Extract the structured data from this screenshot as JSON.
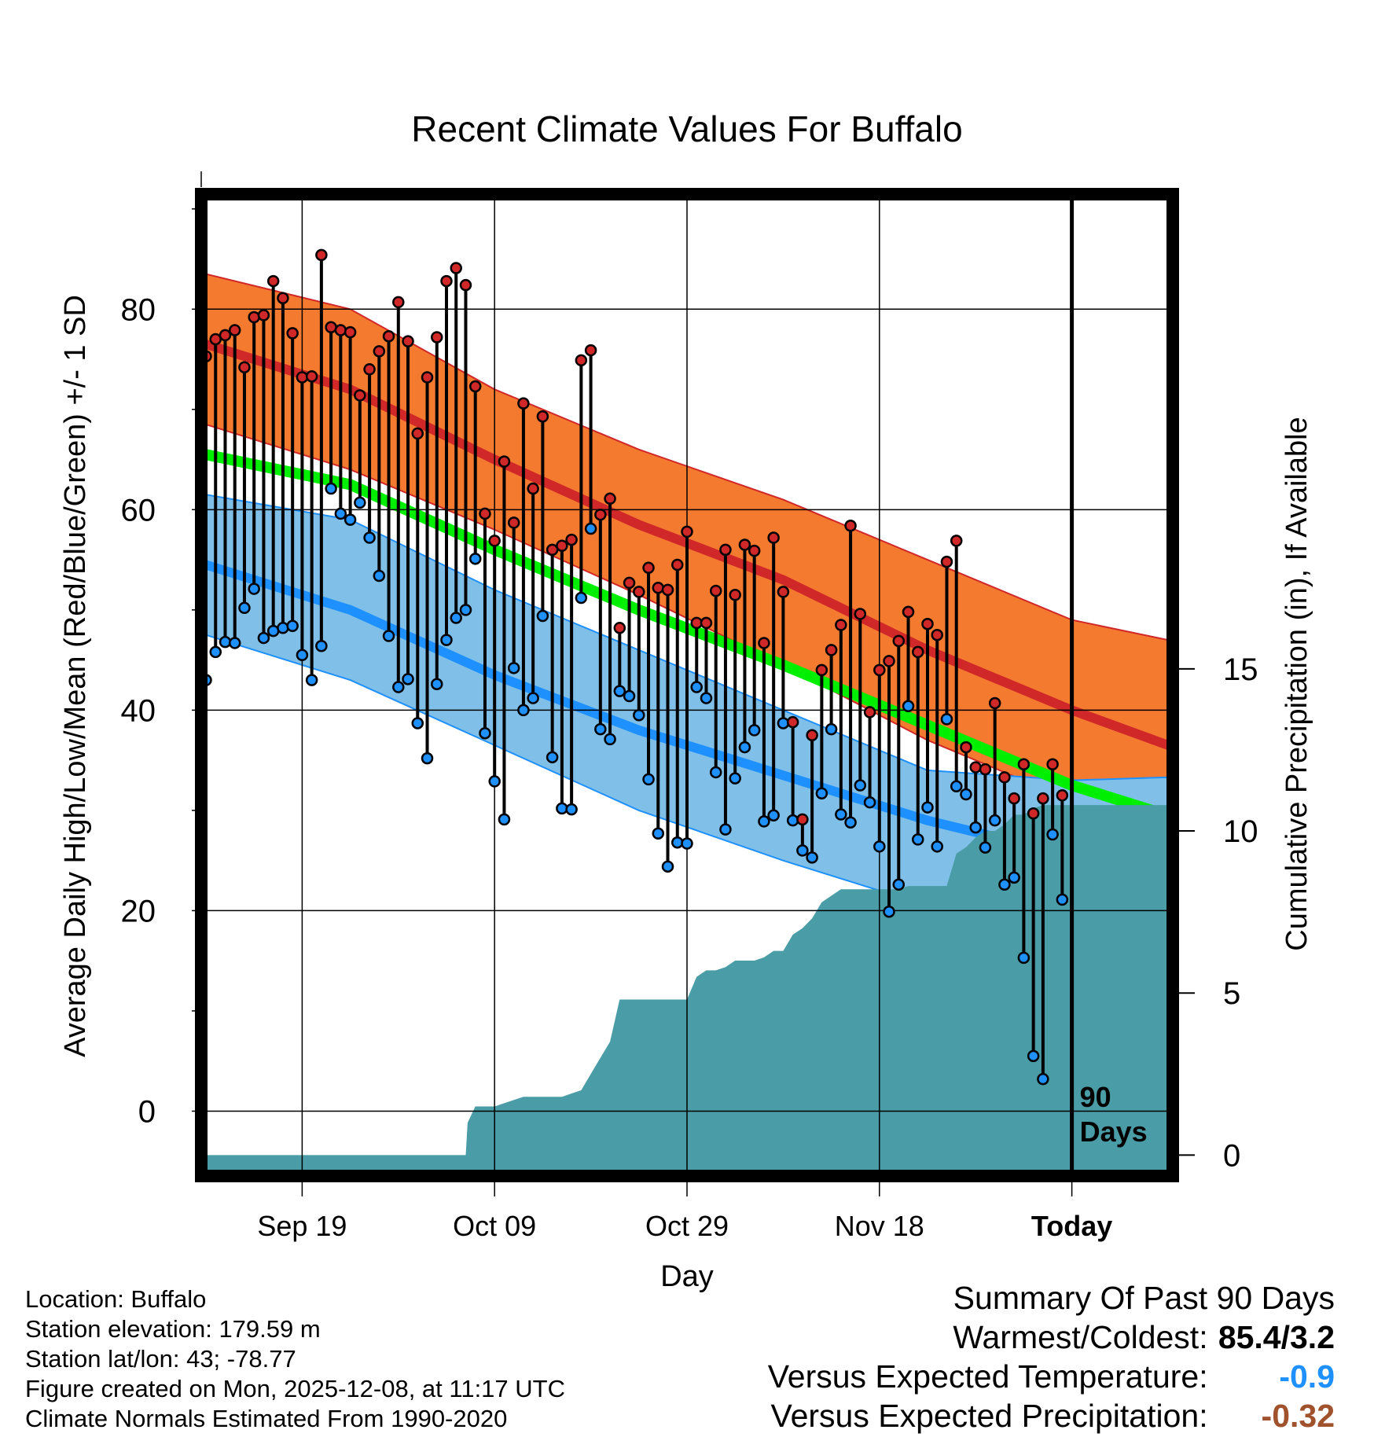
{
  "colors": {
    "record_band": "#F47A30",
    "normal_high": "#D02828",
    "normal_low": "#1E90FF",
    "low_band": "#80C0E8",
    "mean_line": "#00EE00",
    "mean_band": "#990F14",
    "precip_fill": "#4A9CA6",
    "high_dot": "#D02828",
    "low_dot": "#1E90FF",
    "cold_value": "#1E90FF",
    "dry_value": "#A0522D"
  },
  "chart_data": {
    "type": "line",
    "title": "Recent Climate Values For Buffalo",
    "xlabel": "Day",
    "ylabel": "Average Daily High/Low/Mean (Red/Blue/Green) +/- 1 SD",
    "y2label": "Cumulative Precipitation (in), If Available",
    "x_range": [
      0,
      100
    ],
    "ylim": [
      -6,
      91
    ],
    "y2lim": [
      -0.5,
      29.5
    ],
    "y_ticks": [
      0,
      20,
      40,
      60,
      80
    ],
    "y2_ticks": [
      0,
      5,
      10,
      15
    ],
    "x_tick_labels": [
      {
        "day": 10,
        "label": "Sep 19"
      },
      {
        "day": 30,
        "label": "Oct 09"
      },
      {
        "day": 50,
        "label": "Oct 29"
      },
      {
        "day": 70,
        "label": "Nov 18"
      },
      {
        "day": 90,
        "label": "Today"
      }
    ],
    "today_label": [
      "90",
      "Days"
    ],
    "today_day": 90,
    "normals": {
      "days": [
        0,
        15,
        30,
        45,
        60,
        75,
        90,
        100
      ],
      "high_plus_sd": [
        83.5,
        80,
        72,
        66,
        61,
        55,
        49,
        47
      ],
      "high_mean": [
        76.5,
        72,
        65,
        58.5,
        53,
        46,
        40,
        36.5
      ],
      "high_minus_sd": [
        68.5,
        64,
        58,
        51.5,
        44.5,
        37,
        31,
        27
      ],
      "mean": [
        65.5,
        62.5,
        56,
        50,
        44.5,
        38.5,
        32.5,
        29.5
      ],
      "low_plus_sd": [
        61.5,
        59,
        52,
        46,
        40,
        34,
        33,
        33.3
      ],
      "low_mean": [
        54.5,
        50,
        43.5,
        38,
        33.5,
        29,
        25.5,
        23.5
      ],
      "low_minus_sd": [
        47.5,
        43,
        36.5,
        30,
        25,
        20.5,
        17,
        14
      ]
    },
    "series": [
      {
        "name": "Daily High",
        "days": [
          0,
          1,
          2,
          3,
          4,
          5,
          6,
          7,
          8,
          9,
          10,
          11,
          12,
          13,
          14,
          15,
          16,
          17,
          18,
          19,
          20,
          21,
          22,
          23,
          24,
          25,
          26,
          27,
          28,
          29,
          30,
          31,
          32,
          33,
          34,
          35,
          36,
          37,
          38,
          39,
          40,
          41,
          42,
          43,
          44,
          45,
          46,
          47,
          48,
          49,
          50,
          51,
          52,
          53,
          54,
          55,
          56,
          57,
          58,
          59,
          60,
          61,
          62,
          63,
          64,
          65,
          66,
          67,
          68,
          69,
          70,
          71,
          72,
          73,
          74,
          75,
          76,
          77,
          78,
          79,
          80,
          81,
          82,
          83,
          84,
          85,
          86,
          87,
          88,
          89
        ],
        "values": [
          75.3,
          77,
          77.4,
          77.9,
          74.2,
          79.2,
          79.4,
          82.8,
          81.1,
          77.6,
          73.2,
          73.3,
          85.4,
          78.2,
          77.9,
          77.7,
          71.4,
          74,
          75.8,
          77.3,
          80.7,
          76.8,
          67.6,
          73.2,
          77.2,
          82.8,
          84.1,
          82.4,
          72.3,
          59.6,
          56.9,
          64.8,
          58.7,
          70.6,
          62.1,
          69.3,
          56,
          56.4,
          57,
          74.9,
          75.9,
          59.5,
          61.1,
          48.2,
          52.7,
          51.8,
          54.2,
          52.2,
          52,
          54.5,
          57.8,
          48.7,
          48.7,
          51.9,
          56,
          51.5,
          56.5,
          55.9,
          46.7,
          57.2,
          51.8,
          38.8,
          29.1,
          37.5,
          44,
          46,
          48.5,
          58.4,
          49.6,
          39.8,
          44,
          44.9,
          46.9,
          49.8,
          45.8,
          48.6,
          47.5,
          54.8,
          56.9,
          36.3,
          34.3,
          34.1,
          40.7,
          33.3,
          31.2,
          34.6,
          29.7,
          31.2,
          34.6,
          31.5
        ]
      },
      {
        "name": "Daily Low",
        "days": [
          0,
          1,
          2,
          3,
          4,
          5,
          6,
          7,
          8,
          9,
          10,
          11,
          12,
          13,
          14,
          15,
          16,
          17,
          18,
          19,
          20,
          21,
          22,
          23,
          24,
          25,
          26,
          27,
          28,
          29,
          30,
          31,
          32,
          33,
          34,
          35,
          36,
          37,
          38,
          39,
          40,
          41,
          42,
          43,
          44,
          45,
          46,
          47,
          48,
          49,
          50,
          51,
          52,
          53,
          54,
          55,
          56,
          57,
          58,
          59,
          60,
          61,
          62,
          63,
          64,
          65,
          66,
          67,
          68,
          69,
          70,
          71,
          72,
          73,
          74,
          75,
          76,
          77,
          78,
          79,
          80,
          81,
          82,
          83,
          84,
          85,
          86,
          87,
          88,
          89
        ],
        "values": [
          43,
          45.8,
          46.8,
          46.7,
          50.2,
          52.1,
          47.2,
          47.9,
          48.2,
          48.4,
          45.5,
          43,
          46.4,
          62.1,
          59.6,
          59,
          60.7,
          57.2,
          53.4,
          47.4,
          42.3,
          43.1,
          38.7,
          35.2,
          42.6,
          47,
          49.2,
          50,
          55.1,
          37.7,
          32.9,
          29.1,
          44.2,
          40,
          41.2,
          49.4,
          35.3,
          30.2,
          30.1,
          51.2,
          58.1,
          38.1,
          37.1,
          41.9,
          41.4,
          39.5,
          33.1,
          27.7,
          24.4,
          26.8,
          26.7,
          42.3,
          41.2,
          33.8,
          28.1,
          33.2,
          36.3,
          38,
          28.9,
          29.5,
          38.7,
          29,
          26,
          25.3,
          31.7,
          38.1,
          29.6,
          28.8,
          32.5,
          30.8,
          26.4,
          19.9,
          22.6,
          40.4,
          27.1,
          30.3,
          26.4,
          39.1,
          32.4,
          31.6,
          28.3,
          26.3,
          29,
          22.6,
          23.3,
          15.3,
          5.5,
          3.2,
          27.6,
          21.1
        ]
      },
      {
        "name": "Cumulative Precipitation",
        "days": [
          0,
          27,
          27.2,
          28,
          29,
          30,
          31,
          32,
          33,
          34,
          35,
          36,
          37,
          38,
          39,
          40,
          41,
          42,
          43,
          44,
          45,
          46,
          47,
          48,
          49,
          50,
          51,
          52,
          53,
          54,
          55,
          56,
          57,
          58,
          59,
          60,
          61,
          62,
          63,
          64,
          65,
          66,
          67,
          68,
          69,
          70,
          71,
          72,
          73,
          74,
          75,
          76,
          77,
          78,
          79,
          80,
          81,
          82,
          83,
          84,
          85,
          86,
          87,
          88,
          89,
          90,
          91,
          92,
          93,
          94,
          95,
          96,
          97,
          98,
          99,
          100
        ],
        "values": [
          0,
          0,
          1.0,
          1.5,
          1.5,
          1.5,
          1.6,
          1.7,
          1.8,
          1.8,
          1.8,
          1.8,
          1.8,
          1.9,
          2.0,
          2.5,
          3.0,
          3.5,
          4.8,
          4.8,
          4.8,
          4.8,
          4.8,
          4.8,
          4.8,
          4.8,
          5.5,
          5.7,
          5.7,
          5.8,
          6.0,
          6.0,
          6.0,
          6.1,
          6.3,
          6.3,
          6.8,
          7.0,
          7.3,
          7.8,
          8.0,
          8.2,
          8.2,
          8.2,
          8.2,
          8.2,
          8.2,
          8.2,
          8.3,
          8.3,
          8.3,
          8.3,
          8.3,
          9.3,
          9.5,
          9.8,
          10.0,
          10.0,
          10.2,
          10.5,
          10.5,
          10.7,
          10.8,
          10.8,
          10.8,
          10.8,
          10.8,
          10.8,
          10.8,
          10.8,
          10.8,
          10.8,
          10.8,
          10.8,
          10.8,
          10.8
        ]
      }
    ]
  },
  "info": {
    "location": "Location: Buffalo",
    "elevation": "Station elevation: 179.59 m",
    "latlon": "Station lat/lon: 43; -78.77",
    "created": "Figure created on Mon, 2025-12-08, at 11:17 UTC",
    "normals": "Climate Normals Estimated From 1990-2020"
  },
  "summary": {
    "heading": "Summary Of Past 90 Days",
    "warm_cold_label": "Warmest/Coldest:",
    "warm_cold_value": "85.4/3.2",
    "temp_label": "Versus Expected Temperature:",
    "temp_value": "-0.9",
    "precip_label": "Versus Expected Precipitation:",
    "precip_value": "-0.32"
  }
}
